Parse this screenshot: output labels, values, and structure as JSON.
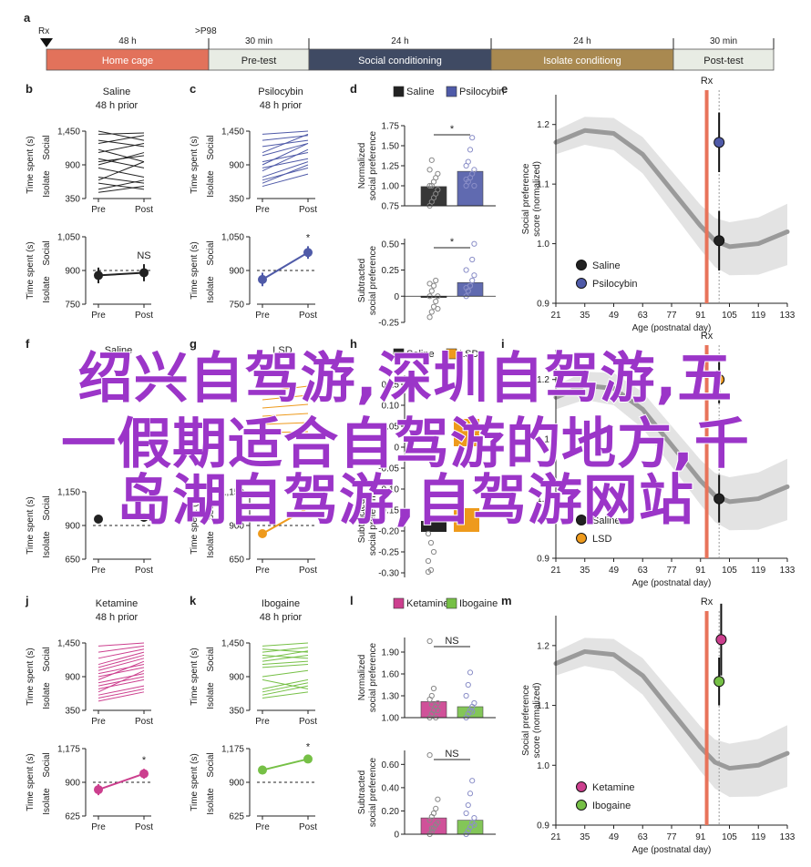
{
  "timeline": {
    "marker_label": "Rx",
    "marker_sub": ">P98",
    "phases": [
      {
        "duration": "48 h",
        "label": "Home cage",
        "color": "#e2725b",
        "text_color": "#ffffff"
      },
      {
        "duration": "30 min",
        "label": "Pre-test",
        "color": "#e8ece4",
        "text_color": "#222222"
      },
      {
        "duration": "24 h",
        "label": "Social conditioning",
        "color": "#3f4a63",
        "text_color": "#ffffff"
      },
      {
        "duration": "24 h",
        "label": "Isolate conditiong",
        "color": "#a98950",
        "text_color": "#ffffff"
      },
      {
        "duration": "30 min",
        "label": "Post-test",
        "color": "#e8ece4",
        "text_color": "#222222"
      }
    ]
  },
  "labels": {
    "time_spent": "Time spent (s)",
    "social": "Social",
    "isolate": "Isolate",
    "pre": "Pre",
    "post": "Post",
    "prior": "48 h prior",
    "norm_pref_1": "Normalized",
    "norm_pref_2": "social preference",
    "sub_pref_1": "Subtracted",
    "sub_pref_2": "social preference",
    "score_1": "Social preference",
    "score_2": "score (normalized)",
    "age_axis": "Age (postnatal day)",
    "rx": "Rx"
  },
  "panel_letters": [
    "a",
    "b",
    "c",
    "d",
    "e",
    "f",
    "g",
    "h",
    "i",
    "j",
    "k",
    "l",
    "m"
  ],
  "drugs": {
    "saline": {
      "name": "Saline",
      "color": "#222222"
    },
    "psilocybin": {
      "name": "Psilocybin",
      "color": "#4f5aa8"
    },
    "lsd": {
      "name": "LSD",
      "color": "#ee9a1c"
    },
    "ketamine": {
      "name": "Ketamine",
      "color": "#cc3f8e"
    },
    "ibogaine": {
      "name": "Ibogaine",
      "color": "#76c046"
    }
  },
  "accent_colors": {
    "rx_line": "#e8735a",
    "trend": "#9a9a9a",
    "band": "#e3e3e3",
    "star_purple": "#b9a0cf"
  },
  "watermark": {
    "line1": "绍兴自驾游,深圳自驾游,五",
    "line2": "一假期适合自驾游的地方,千",
    "line3": "岛湖自驾游,自驾游网站"
  },
  "chart_data": [
    {
      "panel": "b",
      "type": "line",
      "title": "Saline",
      "subtitle": "48 h prior",
      "ylabel": "Time spent (s)",
      "ytick_labels": [
        "350",
        "900",
        "1,450"
      ],
      "ylim": [
        350,
        1450
      ],
      "categories": [
        "Pre",
        "Post"
      ],
      "series": [
        {
          "name": "Saline",
          "values": [
            [
              1450,
              1300
            ],
            [
              1400,
              1420
            ],
            [
              1300,
              1200
            ],
            [
              1250,
              1380
            ],
            [
              1150,
              950
            ],
            [
              1100,
              1250
            ],
            [
              1000,
              850
            ],
            [
              950,
              1050
            ],
            [
              900,
              1100
            ],
            [
              850,
              700
            ],
            [
              700,
              600
            ],
            [
              650,
              950
            ],
            [
              600,
              500
            ],
            [
              500,
              650
            ],
            [
              450,
              550
            ]
          ]
        }
      ]
    },
    {
      "panel": "b-lower",
      "type": "line",
      "ylabel": "Time spent (s)",
      "ytick_labels": [
        "750",
        "900",
        "1,050"
      ],
      "ylim": [
        750,
        1050
      ],
      "categories": [
        "Pre",
        "Post"
      ],
      "annotation": "NS",
      "series": [
        {
          "name": "Saline",
          "values": [
            878,
            890
          ],
          "err": [
            35,
            38
          ]
        }
      ]
    },
    {
      "panel": "c",
      "type": "line",
      "title": "Psilocybin",
      "subtitle": "48 h prior",
      "ylabel": "Time spent (s)",
      "ytick_labels": [
        "350",
        "900",
        "1,450"
      ],
      "ylim": [
        350,
        1450
      ],
      "categories": [
        "Pre",
        "Post"
      ],
      "series": [
        {
          "name": "Psilocybin",
          "values": [
            [
              1400,
              1450
            ],
            [
              1300,
              1380
            ],
            [
              1200,
              1300
            ],
            [
              1100,
              1400
            ],
            [
              1050,
              1250
            ],
            [
              950,
              1100
            ],
            [
              900,
              1250
            ],
            [
              850,
              1000
            ],
            [
              800,
              1150
            ],
            [
              700,
              950
            ],
            [
              650,
              850
            ],
            [
              600,
              900
            ],
            [
              550,
              750
            ]
          ]
        }
      ]
    },
    {
      "panel": "c-lower",
      "type": "line",
      "ylabel": "Time spent (s)",
      "ytick_labels": [
        "750",
        "900",
        "1,050"
      ],
      "ylim": [
        750,
        1050
      ],
      "categories": [
        "Pre",
        "Post"
      ],
      "annotation": "*",
      "series": [
        {
          "name": "Psilocybin",
          "values": [
            860,
            980
          ],
          "err": [
            30,
            28
          ]
        }
      ]
    },
    {
      "panel": "d",
      "type": "bar",
      "ylabel": "Normalized social preference",
      "legend": [
        "Saline",
        "Psilocybin"
      ],
      "ytick_labels": [
        "0.75",
        "1.00",
        "1.25",
        "1.50",
        "1.75"
      ],
      "ylim": [
        0.75,
        1.75
      ],
      "annotation": "*",
      "categories": [
        "Saline",
        "Psilocybin"
      ],
      "values": [
        0.99,
        1.18
      ],
      "points": [
        [
          0.75,
          0.8,
          0.85,
          0.9,
          0.95,
          1.0,
          1.0,
          1.05,
          1.1,
          1.15,
          1.2,
          1.32
        ],
        [
          1.0,
          1.05,
          1.1,
          1.15,
          1.2,
          1.25,
          1.3,
          1.45,
          1.6,
          1.0,
          1.08
        ]
      ]
    },
    {
      "panel": "d-lower",
      "type": "bar",
      "ylabel": "Subtracted social preference",
      "ytick_labels": [
        "-0.25",
        "0",
        "0.25",
        "0.50"
      ],
      "ylim": [
        -0.25,
        0.55
      ],
      "annotation": "*",
      "categories": [
        "Saline",
        "Psilocybin"
      ],
      "values": [
        0.0,
        0.13
      ],
      "points": [
        [
          -0.2,
          -0.15,
          -0.1,
          -0.05,
          0.0,
          0.0,
          0.05,
          0.1,
          0.15,
          -0.12,
          0.12
        ],
        [
          0.0,
          0.05,
          0.1,
          0.15,
          0.2,
          0.25,
          0.05,
          0.1,
          0.35,
          0.5,
          0.08
        ]
      ]
    },
    {
      "panel": "e",
      "type": "scatter",
      "xlabel": "Age (postnatal day)",
      "ylabel": "Social preference score (normalized)",
      "xlim": [
        21,
        133
      ],
      "ylim": [
        0.9,
        1.25
      ],
      "xticks": [
        21,
        35,
        49,
        63,
        77,
        91,
        105,
        119,
        133
      ],
      "yticks": [
        0.9,
        1.0,
        1.1,
        1.2
      ],
      "rx_x": 94,
      "legend": "bottom-left",
      "trend_x": [
        21,
        35,
        49,
        63,
        77,
        91,
        98,
        105,
        119,
        133
      ],
      "trend_y": [
        1.17,
        1.19,
        1.185,
        1.15,
        1.09,
        1.03,
        1.005,
        0.995,
        1.0,
        1.02
      ],
      "series": [
        {
          "name": "Saline",
          "x": [
            100
          ],
          "y": [
            1.005
          ],
          "err": [
            0.05
          ]
        },
        {
          "name": "Psilocybin",
          "x": [
            100
          ],
          "y": [
            1.17
          ],
          "err": [
            0.05
          ]
        }
      ]
    },
    {
      "panel": "f",
      "type": "line",
      "title": "Saline",
      "ylabel": "Time spent (s)",
      "ytick_labels": [
        "650",
        "900",
        "1,150"
      ],
      "categories": [
        "Pre",
        "Post"
      ]
    },
    {
      "panel": "g",
      "type": "line",
      "title": "LSD",
      "ylabel": "Time spent (s)",
      "ytick_labels": [
        "650",
        "900",
        "1,150"
      ],
      "categories": [
        "Pre",
        "Post"
      ]
    },
    {
      "panel": "h",
      "type": "bar",
      "legend": [
        "Saline",
        "LSD"
      ],
      "ylabel": "Subtracted social preference",
      "ytick_labels": [
        "-0.30",
        "-0.25",
        "-0.20",
        "-0.15",
        "-0.10",
        "-0.05",
        "0",
        "0.05",
        "0.10",
        "0.15"
      ],
      "categories": [
        "Saline",
        "LSD"
      ],
      "values": [
        0.005,
        0.075
      ]
    },
    {
      "panel": "i",
      "type": "scatter",
      "xlabel": "Age (postnatal day)",
      "xticks": [
        21,
        35,
        49,
        63,
        77,
        91,
        105,
        119,
        133
      ],
      "xlim": [
        21,
        133
      ],
      "ylim": [
        0.9,
        1.25
      ],
      "rx_x": 94,
      "trend_x": [
        21,
        35,
        49,
        63,
        77,
        91,
        98,
        105,
        119,
        133
      ],
      "trend_y": [
        1.17,
        1.19,
        1.185,
        1.15,
        1.09,
        1.03,
        1.005,
        0.995,
        1.0,
        1.02
      ],
      "series": [
        {
          "name": "Saline",
          "x": [
            100
          ],
          "y": [
            1.0
          ],
          "err": [
            0.04
          ]
        },
        {
          "name": "LSD",
          "x": [
            100
          ],
          "y": [
            1.2
          ],
          "err": [
            0.04
          ]
        }
      ]
    },
    {
      "panel": "j",
      "type": "line",
      "title": "Ketamine",
      "subtitle": "48 h prior",
      "ylabel": "Time spent (s)",
      "ytick_labels": [
        "350",
        "900",
        "1,450"
      ],
      "ylim": [
        350,
        1450
      ],
      "categories": [
        "Pre",
        "Post"
      ],
      "series": [
        {
          "name": "Ketamine",
          "values": [
            [
              1400,
              1450
            ],
            [
              1300,
              1400
            ],
            [
              1200,
              1350
            ],
            [
              1100,
              1300
            ],
            [
              1050,
              1250
            ],
            [
              1000,
              1200
            ],
            [
              950,
              1100
            ],
            [
              900,
              1050
            ],
            [
              850,
              1150
            ],
            [
              800,
              950
            ],
            [
              750,
              900
            ],
            [
              700,
              850
            ],
            [
              650,
              1000
            ],
            [
              600,
              750
            ],
            [
              550,
              700
            ],
            [
              500,
              650
            ]
          ]
        }
      ]
    },
    {
      "panel": "j-lower",
      "type": "line",
      "ylabel": "Time spent (s)",
      "ytick_labels": [
        "625",
        "900",
        "1,175"
      ],
      "ylim": [
        625,
        1175
      ],
      "categories": [
        "Pre",
        "Post"
      ],
      "annotation": "*",
      "series": [
        {
          "name": "Ketamine",
          "values": [
            840,
            970
          ],
          "err": [
            45,
            40
          ]
        }
      ]
    },
    {
      "panel": "k",
      "type": "line",
      "title": "Ibogaine",
      "subtitle": "48 h prior",
      "ylabel": "Time spent (s)",
      "ytick_labels": [
        "350",
        "900",
        "1,450"
      ],
      "ylim": [
        350,
        1450
      ],
      "categories": [
        "Pre",
        "Post"
      ],
      "series": [
        {
          "name": "Ibogaine",
          "values": [
            [
              1400,
              1450
            ],
            [
              1350,
              1300
            ],
            [
              1300,
              1380
            ],
            [
              1250,
              1200
            ],
            [
              1200,
              1320
            ],
            [
              1150,
              1250
            ],
            [
              1100,
              1150
            ],
            [
              1050,
              1100
            ],
            [
              900,
              1000
            ],
            [
              850,
              700
            ],
            [
              700,
              850
            ],
            [
              650,
              800
            ],
            [
              600,
              750
            ],
            [
              550,
              650
            ]
          ]
        }
      ]
    },
    {
      "panel": "k-lower",
      "type": "line",
      "ylabel": "Time spent (s)",
      "ytick_labels": [
        "625",
        "900",
        "1,175"
      ],
      "ylim": [
        625,
        1175
      ],
      "categories": [
        "Pre",
        "Post"
      ],
      "annotation": "*",
      "series": [
        {
          "name": "Ibogaine",
          "values": [
            1000,
            1090
          ],
          "err": [
            35,
            30
          ]
        }
      ]
    },
    {
      "panel": "l",
      "type": "bar",
      "ylabel": "Normalized social preference",
      "legend": [
        "Ketamine",
        "Ibogaine"
      ],
      "ytick_labels": [
        "1.00",
        "1.30",
        "1.60",
        "1.90"
      ],
      "ylim": [
        1.0,
        2.1
      ],
      "annotation": "NS",
      "categories": [
        "Ketamine",
        "Ibogaine"
      ],
      "values": [
        1.22,
        1.15
      ],
      "points": [
        [
          1.0,
          1.05,
          1.1,
          1.15,
          1.2,
          1.25,
          1.3,
          1.4,
          1.0,
          1.1,
          2.05,
          1.18
        ],
        [
          1.0,
          1.05,
          1.1,
          1.15,
          1.2,
          1.3,
          1.45,
          1.62,
          1.08
        ]
      ]
    },
    {
      "panel": "l-lower",
      "type": "bar",
      "ylabel": "Subtracted social preference",
      "ytick_labels": [
        "0",
        "0.20",
        "0.40",
        "0.60"
      ],
      "ylim": [
        0,
        0.72
      ],
      "annotation": "NS",
      "categories": [
        "Ketamine",
        "Ibogaine"
      ],
      "values": [
        0.14,
        0.12
      ],
      "points": [
        [
          0.0,
          0.02,
          0.05,
          0.08,
          0.1,
          0.12,
          0.15,
          0.18,
          0.22,
          0.3,
          0.68,
          0.05
        ],
        [
          0.0,
          0.03,
          0.06,
          0.1,
          0.14,
          0.18,
          0.25,
          0.35,
          0.46,
          0.08
        ]
      ]
    },
    {
      "panel": "m",
      "type": "scatter",
      "xlabel": "Age (postnatal day)",
      "ylabel": "Social preference score (normalized)",
      "xlim": [
        21,
        133
      ],
      "ylim": [
        0.9,
        1.25
      ],
      "xticks": [
        21,
        35,
        49,
        63,
        77,
        91,
        105,
        119,
        133
      ],
      "yticks": [
        0.9,
        1.0,
        1.1,
        1.2
      ],
      "rx_x": 94,
      "legend": "bottom-left",
      "trend_x": [
        21,
        35,
        49,
        63,
        77,
        91,
        98,
        105,
        119,
        133
      ],
      "trend_y": [
        1.17,
        1.19,
        1.185,
        1.15,
        1.09,
        1.03,
        1.005,
        0.995,
        1.0,
        1.02
      ],
      "series": [
        {
          "name": "Ketamine",
          "x": [
            101
          ],
          "y": [
            1.21
          ],
          "err": [
            0.06
          ]
        },
        {
          "name": "Ibogaine",
          "x": [
            100
          ],
          "y": [
            1.14
          ],
          "err": [
            0.04
          ]
        }
      ]
    }
  ]
}
